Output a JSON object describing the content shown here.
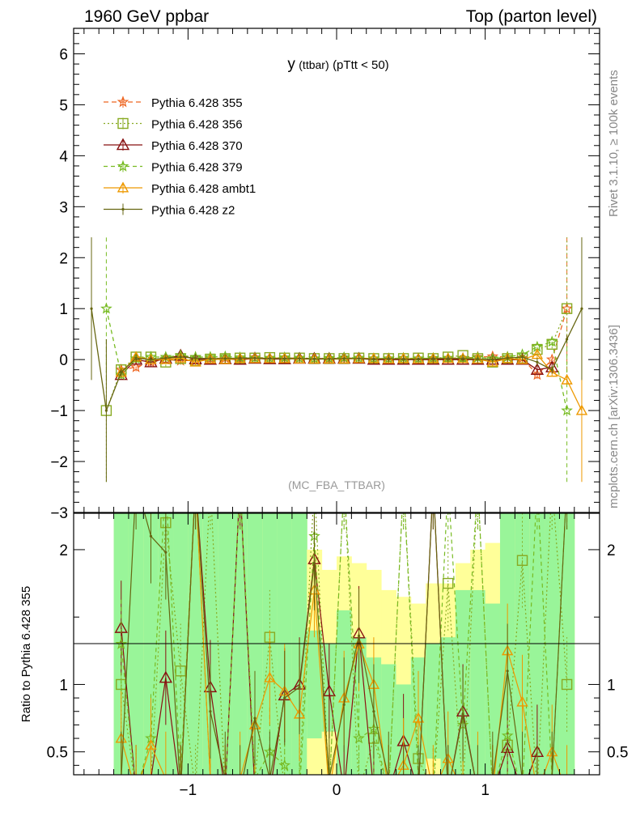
{
  "header": {
    "left": "1960 GeV ppbar",
    "right": "Top (parton level)"
  },
  "side_labels": {
    "right_top": "Rivet 3.1.10, ≥ 100k events",
    "right_bottom": "mcplots.cern.ch [arXiv:1306.3436]"
  },
  "plot_title": {
    "main": "y",
    "sub": "(ttbar)",
    "cut": "(pTtt < 50)"
  },
  "analysis_tag": "(MC_FBA_TTBAR)",
  "ratio_ylabel": "Ratio to Pythia 6.428 355",
  "colors": {
    "p355": "#ee6622",
    "p356": "#88aa22",
    "p370": "#881111",
    "p379": "#77bb22",
    "ambt1": "#ee9900",
    "z2": "#666611",
    "band_green": "#99f599",
    "band_yellow": "#ffff99"
  },
  "chart_data": [
    {
      "type": "line",
      "panel": "main",
      "xlim": [
        -1.77,
        1.77
      ],
      "ylim": [
        -3,
        6.5
      ],
      "yticks": [
        -2,
        -1,
        0,
        1,
        2,
        3,
        4,
        5,
        6
      ],
      "ytick_labels": [
        "−2",
        "−1",
        "0",
        "1",
        "2",
        "3",
        "4",
        "5",
        "6"
      ],
      "legend_position": "top-left",
      "x": [
        -1.65,
        -1.55,
        -1.45,
        -1.35,
        -1.25,
        -1.15,
        -1.05,
        -0.95,
        -0.85,
        -0.75,
        -0.65,
        -0.55,
        -0.45,
        -0.35,
        -0.25,
        -0.15,
        -0.05,
        0.05,
        0.15,
        0.25,
        0.35,
        0.45,
        0.55,
        0.65,
        0.75,
        0.85,
        0.95,
        1.05,
        1.15,
        1.25,
        1.35,
        1.45,
        1.55,
        1.65
      ],
      "series": [
        {
          "key": "p355",
          "name": "Pythia 6.428 355",
          "marker": "star",
          "dash": "6,4",
          "values": [
            null,
            null,
            -0.2,
            -0.15,
            -0.05,
            0.0,
            -0.02,
            -0.02,
            0.02,
            0.03,
            0.02,
            0.04,
            0.03,
            0.03,
            0.03,
            0.02,
            0.02,
            0.03,
            0.03,
            0.02,
            0.02,
            0.03,
            0.02,
            0.02,
            0.03,
            0.03,
            0.05,
            0.06,
            0.05,
            0.03,
            -0.3,
            0.0,
            1.0,
            null
          ]
        },
        {
          "key": "p356",
          "name": "Pythia 6.428 356",
          "marker": "square",
          "dash": "2,3",
          "values": [
            null,
            -1.0,
            -0.2,
            0.05,
            0.05,
            -0.05,
            0.02,
            -0.02,
            0.01,
            0.02,
            0.03,
            0.03,
            0.04,
            0.03,
            0.03,
            0.02,
            0.02,
            0.02,
            0.03,
            0.02,
            0.02,
            0.02,
            0.03,
            0.02,
            0.05,
            0.08,
            0.02,
            -0.05,
            0.02,
            0.03,
            0.2,
            0.3,
            1.0,
            null
          ]
        },
        {
          "key": "p370",
          "name": "Pythia 6.428 370",
          "marker": "triangle",
          "dash": "",
          "values": [
            null,
            null,
            -0.3,
            0.0,
            -0.05,
            0.02,
            0.08,
            0.01,
            0.0,
            0.01,
            0.0,
            0.02,
            0.01,
            0.01,
            0.02,
            0.02,
            0.02,
            0.02,
            0.02,
            0.0,
            0.0,
            0.0,
            0.0,
            0.0,
            0.0,
            0.0,
            0.0,
            0.0,
            0.0,
            0.0,
            -0.2,
            -0.15,
            null,
            null
          ]
        },
        {
          "key": "p379",
          "name": "Pythia 6.428 379",
          "marker": "star",
          "dash": "5,4",
          "values": [
            null,
            1.0,
            -0.3,
            0.02,
            0.05,
            0.05,
            0.08,
            0.05,
            0.05,
            0.06,
            0.04,
            0.03,
            0.03,
            0.04,
            0.03,
            0.02,
            0.03,
            0.04,
            0.03,
            0.02,
            0.02,
            0.03,
            0.02,
            0.03,
            0.03,
            0.02,
            0.04,
            0.02,
            0.05,
            0.1,
            0.25,
            0.35,
            -1.0,
            null
          ]
        },
        {
          "key": "ambt1",
          "name": "Pythia 6.428 ambt1",
          "marker": "triangle-open",
          "dash": "",
          "values": [
            null,
            null,
            -0.25,
            0.05,
            0.0,
            0.0,
            0.03,
            -0.05,
            0.01,
            0.0,
            0.02,
            0.02,
            0.02,
            0.02,
            0.01,
            0.01,
            0.01,
            0.01,
            0.02,
            0.02,
            0.01,
            0.02,
            0.01,
            0.02,
            0.02,
            0.02,
            0.01,
            -0.05,
            0.02,
            0.0,
            0.1,
            -0.25,
            -0.4,
            -1.0
          ]
        },
        {
          "key": "z2",
          "name": "Pythia 6.428 z2",
          "marker": "dot",
          "dash": "",
          "values": [
            1.0,
            -1.0,
            -0.25,
            0.03,
            0.0,
            0.03,
            0.05,
            0.03,
            0.02,
            0.02,
            0.03,
            0.03,
            0.02,
            0.02,
            0.02,
            0.01,
            0.01,
            0.02,
            0.02,
            0.01,
            0.02,
            0.01,
            0.01,
            0.02,
            0.02,
            0.02,
            0.01,
            0.0,
            0.03,
            0.05,
            -0.05,
            -0.2,
            0.4,
            1.0
          ]
        }
      ]
    },
    {
      "type": "line",
      "panel": "ratio",
      "xlim": [
        -1.77,
        1.77
      ],
      "ylim": [
        0.33,
        2.27
      ],
      "yticks": [
        0.5,
        1,
        2
      ],
      "ytick_labels": [
        "0.5",
        "1",
        "2"
      ],
      "xticks": [
        -1,
        0,
        1
      ],
      "xtick_labels": [
        "−1",
        "0",
        "1"
      ],
      "bands": {
        "yellow_top": [
          null,
          null,
          2.3,
          2.3,
          2.3,
          2.3,
          2.3,
          2.3,
          2.3,
          2.3,
          2.3,
          2.3,
          2.3,
          2.3,
          2.3,
          2.0,
          1.85,
          1.95,
          1.9,
          1.85,
          1.7,
          1.65,
          1.6,
          1.75,
          1.75,
          1.9,
          2.0,
          2.05,
          2.3,
          2.3,
          2.3,
          2.3,
          2.3,
          null
        ],
        "green_top": [
          null,
          null,
          2.3,
          2.3,
          2.3,
          2.3,
          2.3,
          2.3,
          2.3,
          2.3,
          2.3,
          2.3,
          2.3,
          2.3,
          2.3,
          1.4,
          1.3,
          1.55,
          1.35,
          1.2,
          1.15,
          1.0,
          1.2,
          1.3,
          1.35,
          1.7,
          1.7,
          1.6,
          2.3,
          2.3,
          2.3,
          2.3,
          2.3,
          null
        ],
        "green_bottom": [
          null,
          null,
          0.3,
          0.3,
          0.3,
          0.3,
          0.3,
          0.3,
          0.3,
          0.3,
          0.3,
          0.3,
          0.3,
          0.3,
          0.3,
          0.6,
          0.65,
          0.3,
          0.3,
          0.3,
          0.3,
          0.3,
          0.3,
          0.45,
          0.3,
          0.3,
          0.3,
          0.3,
          0.3,
          0.3,
          0.3,
          0.3,
          0.3,
          null
        ],
        "yellow_bottom": [
          null,
          null,
          0.3,
          0.3,
          0.3,
          0.3,
          0.3,
          0.3,
          0.3,
          0.3,
          0.3,
          0.3,
          0.3,
          0.3,
          0.3,
          0.3,
          0.3,
          0.3,
          0.3,
          0.3,
          0.3,
          0.3,
          0.3,
          0.3,
          0.3,
          0.3,
          0.3,
          0.3,
          0.3,
          0.3,
          0.3,
          0.3,
          0.3,
          null
        ]
      },
      "series": [
        {
          "key": "p356",
          "values": [
            null,
            null,
            1.0,
            0.2,
            0.3,
            2.2,
            1.1,
            0.2,
            2.5,
            0.2,
            2.5,
            0.3,
            1.35,
            0.2,
            0.3,
            2.5,
            0.2,
            2.5,
            0.2,
            0.6,
            0.2,
            2.5,
            0.45,
            0.2,
            1.75,
            0.2,
            2.5,
            0.2,
            0.55,
            1.92,
            0.2,
            2.5,
            1.0,
            null
          ]
        },
        {
          "key": "p370",
          "values": [
            null,
            null,
            1.42,
            0.2,
            0.3,
            1.05,
            0.2,
            2.5,
            0.98,
            0.2,
            2.5,
            0.2,
            0.2,
            0.92,
            1.0,
            1.93,
            0.95,
            0.2,
            1.38,
            0.2,
            0.2,
            0.58,
            0.2,
            2.5,
            0.2,
            0.8,
            0.2,
            0.2,
            0.53,
            0.2,
            0.5,
            null,
            null,
            null
          ]
        },
        {
          "key": "p379",
          "values": [
            null,
            null,
            1.3,
            0.2,
            0.6,
            2.5,
            0.3,
            2.5,
            0.3,
            0.2,
            2.5,
            0.3,
            0.5,
            0.4,
            0.2,
            2.1,
            0.2,
            2.5,
            0.6,
            0.67,
            0.2,
            2.5,
            0.3,
            0.2,
            2.5,
            0.7,
            2.5,
            0.2,
            0.62,
            0.2,
            2.5,
            0.3,
            2.5,
            null
          ]
        },
        {
          "key": "ambt1",
          "values": [
            null,
            null,
            0.6,
            0.2,
            0.55,
            0.3,
            0.2,
            2.5,
            0.3,
            0.2,
            0.3,
            0.7,
            1.05,
            0.95,
            0.78,
            1.7,
            0.2,
            0.9,
            1.3,
            1.0,
            0.2,
            0.4,
            0.75,
            0.2,
            0.45,
            0.2,
            0.3,
            0.2,
            1.25,
            0.87,
            0.2,
            0.5,
            0.2,
            null
          ]
        },
        {
          "key": "z2",
          "values": [
            null,
            null,
            0.3,
            2.5,
            2.1,
            1.98,
            0.2,
            2.5,
            0.8,
            0.3,
            0.2,
            0.75,
            0.3,
            0.9,
            0.98,
            1.9,
            0.3,
            0.85,
            1.36,
            0.8,
            0.3,
            0.2,
            0.2,
            2.5,
            0.2,
            0.78,
            0.2,
            0.3,
            1.1,
            0.3,
            0.2,
            0.3,
            2.5,
            null
          ]
        }
      ]
    }
  ]
}
